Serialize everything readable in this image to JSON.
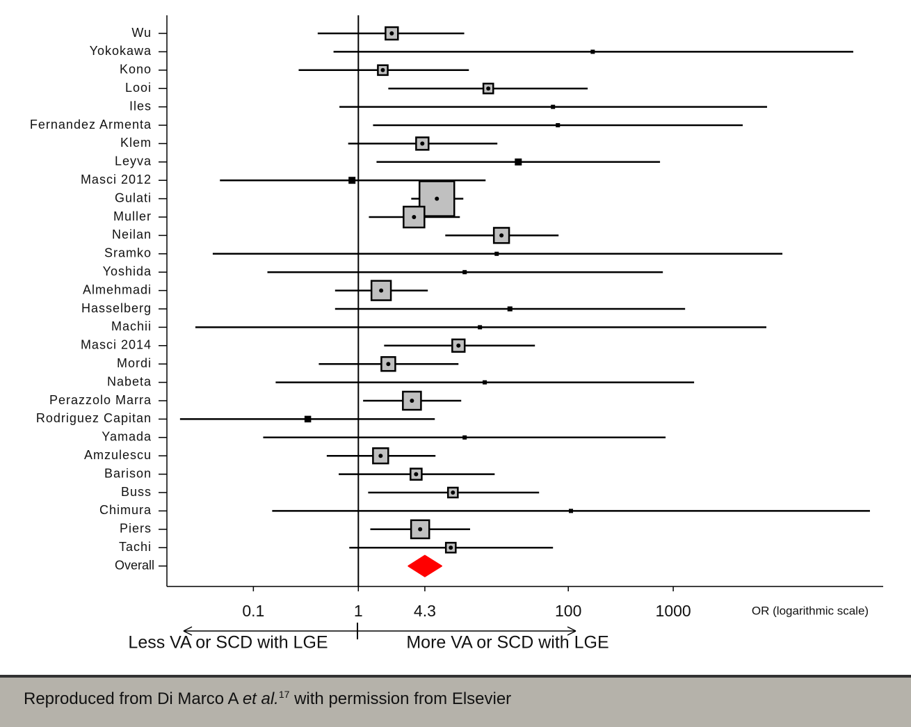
{
  "chart_data": {
    "type": "forest",
    "categories": [
      "Wu",
      "Yokokawa",
      "Kono",
      "Looi",
      "Iles",
      "Fernandez Armenta",
      "Klem",
      "Leyva",
      "Masci 2012",
      "Gulati",
      "Muller",
      "Neilan",
      "Sramko",
      "Yoshida",
      "Almehmadi",
      "Hasselberg",
      "Machii",
      "Masci 2014",
      "Mordi",
      "Nabeta",
      "Perazzolo Marra",
      "Rodriguez Capitan",
      "Yamada",
      "Amzulescu",
      "Barison",
      "Buss",
      "Chimura",
      "Piers",
      "Tachi"
    ],
    "values": [
      2.08,
      171,
      1.71,
      17.3,
      71.5,
      79.6,
      4.07,
      33.4,
      0.87,
      5.6,
      3.39,
      23.1,
      20.8,
      10.3,
      1.65,
      27.8,
      14.4,
      8.99,
      1.93,
      16.0,
      3.24,
      0.33,
      10.3,
      1.63,
      3.55,
      7.96,
      106,
      3.88,
      7.6
    ],
    "lower": [
      0.41,
      0.58,
      0.27,
      1.93,
      0.66,
      1.38,
      0.8,
      1.49,
      0.048,
      3.19,
      1.26,
      6.73,
      0.041,
      0.136,
      0.6,
      0.6,
      0.028,
      1.76,
      0.42,
      0.163,
      1.11,
      0.02,
      0.124,
      0.5,
      0.65,
      1.24,
      0.151,
      1.3,
      0.82
    ],
    "upper": [
      10.2,
      51900,
      11.3,
      153,
      7830,
      4590,
      21.1,
      748,
      16.3,
      10.0,
      9.27,
      80.8,
      10960,
      796,
      4.59,
      1297,
      7710,
      48.1,
      8.99,
      1580,
      9.55,
      5.35,
      845,
      5.43,
      19.9,
      52.7,
      74800,
      11.6,
      71.5
    ],
    "weights": [
      3.2,
      0.2,
      2.0,
      2.0,
      0.3,
      0.3,
      3.2,
      1.0,
      1.0,
      25,
      9,
      4.8,
      0.2,
      0.3,
      7.8,
      0.5,
      0.2,
      3.2,
      4.0,
      0.3,
      6.8,
      0.9,
      0.3,
      4.8,
      2.6,
      2.0,
      0.2,
      6.8,
      2.0
    ],
    "color": "#c0c0c0",
    "overall": {
      "label": "Overall",
      "value": 4.3,
      "lower": 3.0,
      "upper": 6.2,
      "color": "#ff0000"
    },
    "log_scale": true,
    "xlim": [
      0.015,
      100000
    ],
    "xticks": [
      0.1,
      1,
      4.3,
      100,
      1000
    ],
    "x_label": "OR (logarithmic scale)",
    "left_label": "Less VA or SCD with LGE",
    "right_label": "More VA or SCD with LGE"
  },
  "footer": {
    "before": "Reproduced from Di Marco A ",
    "italic": "et al.",
    "superscript": "17",
    "after": " with permission from Elsevier"
  }
}
